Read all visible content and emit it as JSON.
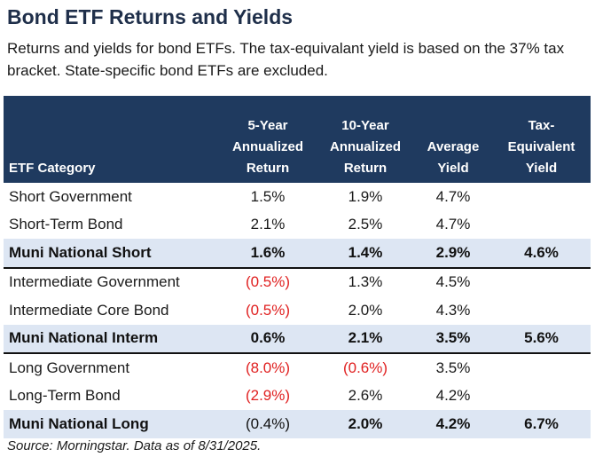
{
  "title": "Bond ETF Returns and Yields",
  "subtitle": "Returns and yields for bond ETFs. The tax-equivalant yield is based on the 37% tax bracket. State-specific bond ETFs are excluded.",
  "source": "Source: Morningstar. Data as of 8/31/2025.",
  "colors": {
    "header_bg": "#1f3a5f",
    "highlight_row": "#dde6f3",
    "negative": "#e02020"
  },
  "chart_data": {
    "type": "table",
    "columns": [
      [
        "ETF Category"
      ],
      [
        "5-Year",
        "Annualized",
        "Return"
      ],
      [
        "10-Year",
        "Annualized",
        "Return"
      ],
      [
        "Average",
        "Yield"
      ],
      [
        "Tax-",
        "Equivalent",
        "Yield"
      ]
    ],
    "rows": [
      {
        "category": "Short Government",
        "ret5": "1.5%",
        "ret10": "1.9%",
        "yield": "4.7%",
        "tey": "",
        "highlight": false,
        "group_end": false
      },
      {
        "category": "Short-Term Bond",
        "ret5": "2.1%",
        "ret10": "2.5%",
        "yield": "4.7%",
        "tey": "",
        "highlight": false,
        "group_end": false
      },
      {
        "category": "Muni National Short",
        "ret5": "1.6%",
        "ret10": "1.4%",
        "yield": "2.9%",
        "tey": "4.6%",
        "highlight": true,
        "group_end": true
      },
      {
        "category": "Intermediate Government",
        "ret5": "(0.5%)",
        "ret10": "1.3%",
        "yield": "4.5%",
        "tey": "",
        "highlight": false,
        "group_end": false
      },
      {
        "category": "Intermediate Core Bond",
        "ret5": "(0.5%)",
        "ret10": "2.0%",
        "yield": "4.3%",
        "tey": "",
        "highlight": false,
        "group_end": false
      },
      {
        "category": "Muni National Interm",
        "ret5": "0.6%",
        "ret10": "2.1%",
        "yield": "3.5%",
        "tey": "5.6%",
        "highlight": true,
        "group_end": true
      },
      {
        "category": "Long Government",
        "ret5": "(8.0%)",
        "ret10": "(0.6%)",
        "yield": "3.5%",
        "tey": "",
        "highlight": false,
        "group_end": false
      },
      {
        "category": "Long-Term Bond",
        "ret5": "(2.9%)",
        "ret10": "2.6%",
        "yield": "4.2%",
        "tey": "",
        "highlight": false,
        "group_end": false
      },
      {
        "category": "Muni National Long",
        "ret5": "(0.4%)",
        "ret10": "2.0%",
        "yield": "4.2%",
        "tey": "6.7%",
        "highlight": true,
        "group_end": false
      }
    ]
  }
}
